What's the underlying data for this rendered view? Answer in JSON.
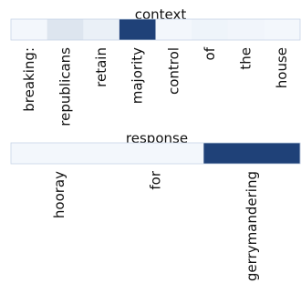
{
  "chart_data": [
    {
      "type": "heatmap",
      "title": "context",
      "tokens": [
        "breaking:",
        "republicans",
        "retain",
        "majority",
        "control",
        "of",
        "the",
        "house"
      ],
      "values": [
        0.02,
        0.12,
        0.06,
        1.0,
        0.02,
        0.04,
        0.03,
        0.02
      ],
      "value_range": [
        0,
        1
      ],
      "colormap": "Blues",
      "grid": false,
      "legend": "none"
    },
    {
      "type": "heatmap",
      "title": "response",
      "tokens": [
        "hooray",
        "for",
        "gerrymandering"
      ],
      "values": [
        0.02,
        0.02,
        1.0
      ],
      "value_range": [
        0,
        1
      ],
      "colormap": "Blues",
      "grid": false,
      "legend": "none"
    }
  ]
}
